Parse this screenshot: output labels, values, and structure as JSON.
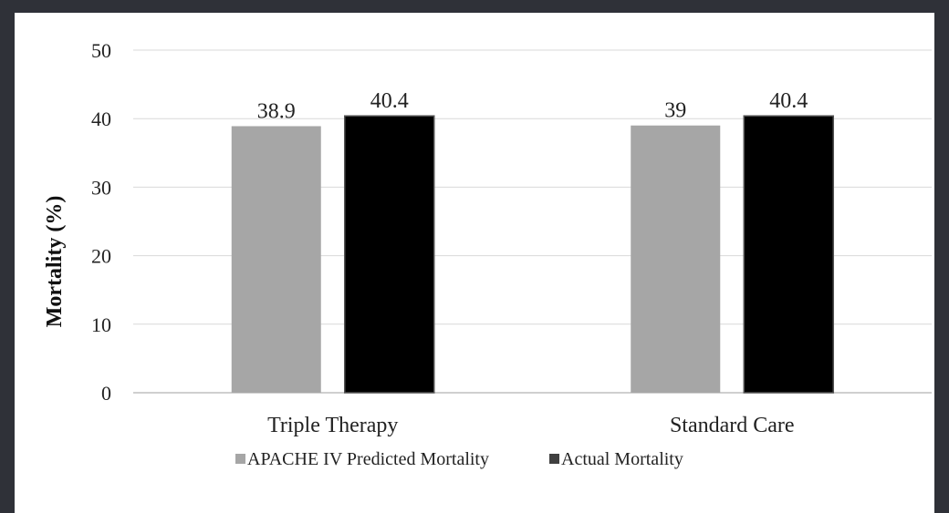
{
  "chart_data": {
    "type": "bar",
    "ylabel": "Mortality (%)",
    "xlabel": "",
    "ylim": [
      0,
      50
    ],
    "yticks": [
      0,
      10,
      20,
      30,
      40,
      50
    ],
    "grid": true,
    "legend_position": "bottom",
    "categories": [
      "Triple Therapy",
      "Standard Care"
    ],
    "series": [
      {
        "name": "APACHE IV Predicted Mortality",
        "values": [
          38.9,
          39
        ],
        "labels": [
          "38.9",
          "39"
        ],
        "color": "#a6a6a6"
      },
      {
        "name": "Actual Mortality",
        "values": [
          40.4,
          40.4
        ],
        "labels": [
          "40.4",
          "40.4"
        ],
        "color": "#000000"
      }
    ]
  }
}
